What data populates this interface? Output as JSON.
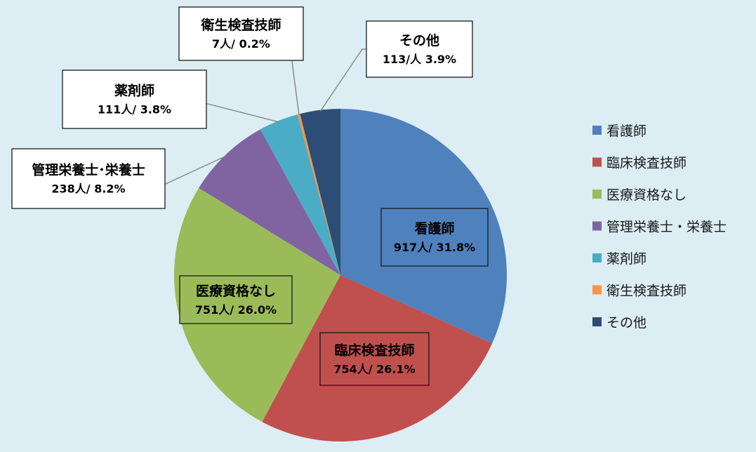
{
  "chart_data": {
    "type": "pie",
    "title": "",
    "slices": [
      {
        "name": "看護師",
        "count": 917,
        "percent": 31.8,
        "label_title": "看護師",
        "label_value": "917人/ 31.8%",
        "color": "#4f81bd"
      },
      {
        "name": "臨床検査技師",
        "count": 754,
        "percent": 26.1,
        "label_title": "臨床検査技師",
        "label_value": "754人/ 26.1%",
        "color": "#c0504d"
      },
      {
        "name": "医療資格なし",
        "count": 751,
        "percent": 26.0,
        "label_title": "医療資格なし",
        "label_value": "751人/ 26.0%",
        "color": "#9bbb59"
      },
      {
        "name": "管理栄養士・栄養士",
        "count": 238,
        "percent": 8.2,
        "label_title": "管理栄養士･栄養士",
        "label_value": "238人/ 8.2%",
        "color": "#8064a2"
      },
      {
        "name": "薬剤師",
        "count": 111,
        "percent": 3.8,
        "label_title": "薬剤師",
        "label_value": "111人/ 3.8%",
        "color": "#4bacc6"
      },
      {
        "name": "衛生検査技師",
        "count": 7,
        "percent": 0.2,
        "label_title": "衛生検査技師",
        "label_value": "7人/ 0.2%",
        "color": "#f79646"
      },
      {
        "name": "その他",
        "count": 113,
        "percent": 3.9,
        "label_title": "その他",
        "label_value": "113/人 3.9%",
        "color": "#2c4d75"
      }
    ],
    "legend": {
      "position": "right",
      "items": [
        "看護師",
        "臨床検査技師",
        "医療資格なし",
        "管理栄養士・栄養士",
        "薬剤師",
        "衛生検査技師",
        "その他"
      ]
    }
  }
}
